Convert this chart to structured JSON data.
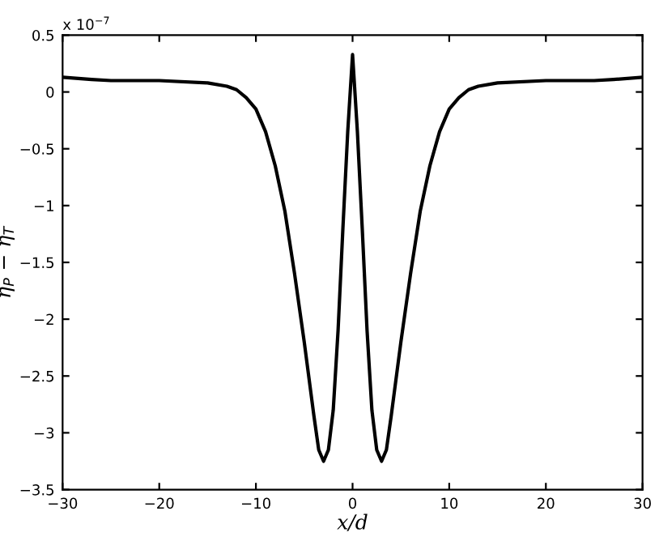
{
  "chart_data": {
    "type": "line",
    "xlabel": "x/d",
    "ylabel": "η$_{P}$ − η$_{T}$",
    "annotations": [
      "x 10$^{−7}$"
    ],
    "series": [
      {
        "color": "#000000",
        "x": [
          -30,
          -27,
          -25,
          -20,
          -15,
          -13,
          -12,
          -11,
          -10,
          -9,
          -8,
          -7,
          -6,
          -5,
          -4,
          -3.5,
          -3,
          -2.5,
          -2,
          -1.5,
          -1,
          -0.5,
          0,
          0.5,
          1,
          1.5,
          2,
          2.5,
          3,
          3.5,
          4,
          5,
          6,
          7,
          8,
          9,
          10,
          11,
          12,
          13,
          15,
          20,
          25,
          27,
          30
        ],
        "values": [
          0.13,
          0.11,
          0.1,
          0.1,
          0.08,
          0.05,
          0.02,
          -0.05,
          -0.15,
          -0.35,
          -0.65,
          -1.05,
          -1.6,
          -2.2,
          -2.85,
          -3.15,
          -3.25,
          -3.15,
          -2.8,
          -2.1,
          -1.2,
          -0.35,
          0.33,
          -0.35,
          -1.2,
          -2.1,
          -2.8,
          -3.15,
          -3.25,
          -3.15,
          -2.85,
          -2.2,
          -1.6,
          -1.05,
          -0.65,
          -0.35,
          -0.15,
          -0.05,
          0.02,
          0.05,
          0.08,
          0.1,
          0.1,
          0.11,
          0.13
        ]
      }
    ],
    "xlim": [
      -30,
      30
    ],
    "ylim": [
      -3.5,
      0.5
    ],
    "xticks": [
      -30,
      -20,
      -10,
      0,
      10,
      20,
      30
    ],
    "yticks": [
      -3.5,
      -3,
      -2.5,
      -2,
      -1.5,
      -1,
      -0.5,
      0,
      0.5
    ],
    "grid": false,
    "legend": false,
    "marker": "none",
    "line_style": "solid"
  }
}
